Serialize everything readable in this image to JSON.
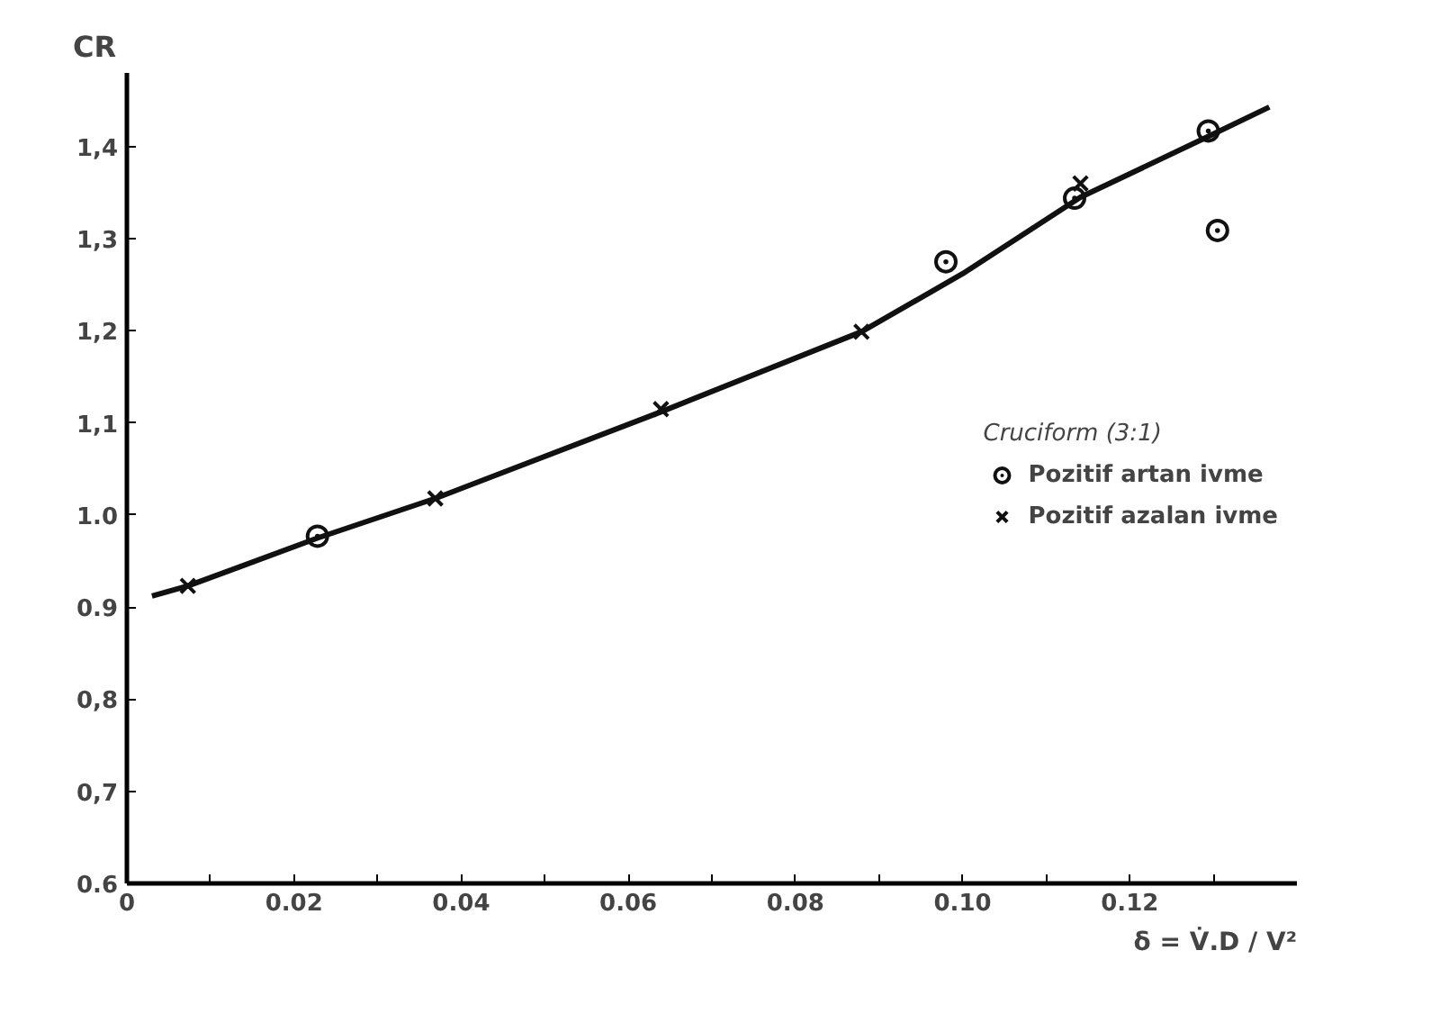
{
  "chart_data": {
    "type": "scatter",
    "ylabel": "CR",
    "xlabel": "δ = V̇.D / V²",
    "legend_title": "Cruciform (3:1)",
    "xlim": [
      0,
      0.14
    ],
    "ylim": [
      0.6,
      1.48
    ],
    "xticks": [
      {
        "value": 0,
        "label": "0"
      },
      {
        "value": 0.01,
        "label": null
      },
      {
        "value": 0.02,
        "label": "0.02"
      },
      {
        "value": 0.03,
        "label": null
      },
      {
        "value": 0.04,
        "label": "0.04"
      },
      {
        "value": 0.05,
        "label": null
      },
      {
        "value": 0.06,
        "label": "0.06"
      },
      {
        "value": 0.07,
        "label": null
      },
      {
        "value": 0.08,
        "label": "0.08"
      },
      {
        "value": 0.09,
        "label": null
      },
      {
        "value": 0.1,
        "label": "0.10"
      },
      {
        "value": 0.11,
        "label": null
      },
      {
        "value": 0.12,
        "label": "0.12"
      },
      {
        "value": 0.13,
        "label": null
      }
    ],
    "yticks": [
      {
        "value": 0.6,
        "label": "0.6"
      },
      {
        "value": 0.7,
        "label": "0,7"
      },
      {
        "value": 0.8,
        "label": "0,8"
      },
      {
        "value": 0.9,
        "label": "0.9"
      },
      {
        "value": 1.0,
        "label": "1.0"
      },
      {
        "value": 1.1,
        "label": "1,1"
      },
      {
        "value": 1.2,
        "label": "1,2"
      },
      {
        "value": 1.3,
        "label": "1,3"
      },
      {
        "value": 1.4,
        "label": "1,4"
      }
    ],
    "grid": false,
    "legend": "right",
    "series": [
      {
        "type": "line",
        "color": "#111111",
        "marker": "none",
        "line_style": "solid",
        "x": [
          0.003,
          0.0073,
          0.0228,
          0.0369,
          0.0639,
          0.0879,
          0.1,
          0.1141,
          0.1294,
          0.1367
        ],
        "values": [
          0.912,
          0.923,
          0.975,
          1.018,
          1.112,
          1.199,
          1.262,
          1.345,
          1.411,
          1.443
        ]
      },
      {
        "name": "Pozitif artan ivme",
        "color": "#111111",
        "marker": "circle",
        "x": [
          0.0228,
          0.098,
          0.1134,
          0.1294,
          0.1305
        ],
        "values": [
          0.977,
          1.275,
          1.344,
          1.417,
          1.309
        ]
      },
      {
        "name": "Pozitif azalan ivme",
        "color": "#111111",
        "marker": "cross",
        "x": [
          0.0073,
          0.0369,
          0.0639,
          0.0879,
          0.1141
        ],
        "values": [
          0.923,
          1.018,
          1.115,
          1.199,
          1.36
        ]
      }
    ]
  }
}
